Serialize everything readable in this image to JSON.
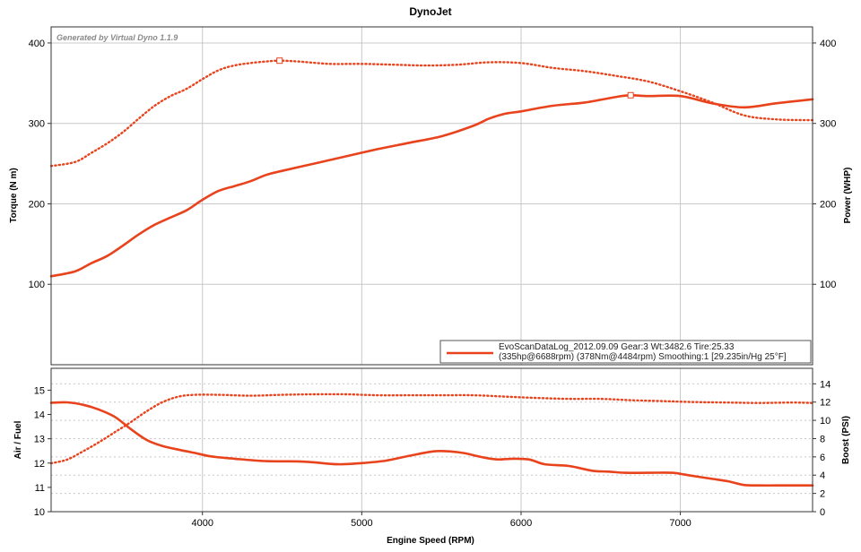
{
  "chart_data": {
    "type": "line",
    "title": "DynoJet",
    "watermark": "Generated by Virtual Dyno 1.1.9",
    "xlabel": "Engine Speed (RPM)",
    "xlim": [
      3050,
      7830
    ],
    "xticks": [
      4000,
      5000,
      6000,
      7000
    ],
    "colors": {
      "series": "#e8431c",
      "grid": "#c8c8c8",
      "frame": "#333333"
    },
    "legend": {
      "placement": "bottom-right",
      "line1": "EvoScanDataLog_2012.09.09 Gear:3 Wt:3482.6 Tire:25.33",
      "line2": "(335hp@6688rpm) (378Nm@4484rpm) Smoothing:1 [29.235in/Hg 25°F]"
    },
    "top": {
      "left_axis": {
        "label": "Torque (N m)",
        "lim": [
          0,
          420
        ],
        "ticks": [
          100,
          200,
          300,
          400
        ]
      },
      "right_axis": {
        "label": "Power (WHP)",
        "lim": [
          0,
          420
        ],
        "ticks": [
          100,
          200,
          300,
          400
        ]
      },
      "series": [
        {
          "name": "Torque",
          "axis": "left",
          "style": "dotted",
          "x": [
            3050,
            3200,
            3300,
            3400,
            3500,
            3600,
            3700,
            3800,
            3900,
            4000,
            4100,
            4200,
            4300,
            4400,
            4484,
            4600,
            4800,
            5000,
            5200,
            5400,
            5600,
            5800,
            6000,
            6200,
            6400,
            6600,
            6800,
            7000,
            7200,
            7400,
            7600,
            7830
          ],
          "y": [
            247,
            252,
            263,
            275,
            289,
            306,
            322,
            334,
            343,
            355,
            366,
            372,
            375,
            377,
            378,
            377,
            374,
            374,
            373,
            372,
            373,
            376,
            375,
            369,
            365,
            359,
            352,
            340,
            326,
            310,
            305,
            304
          ],
          "marker": {
            "x": 4484,
            "y": 378
          }
        },
        {
          "name": "Power",
          "axis": "right",
          "style": "solid",
          "x": [
            3050,
            3200,
            3300,
            3400,
            3500,
            3600,
            3700,
            3800,
            3900,
            4000,
            4100,
            4200,
            4300,
            4400,
            4500,
            4700,
            4900,
            5100,
            5300,
            5500,
            5700,
            5800,
            5900,
            6000,
            6200,
            6400,
            6600,
            6688,
            6800,
            7000,
            7200,
            7400,
            7600,
            7830
          ],
          "y": [
            110,
            116,
            126,
            135,
            148,
            162,
            174,
            183,
            192,
            205,
            216,
            222,
            228,
            236,
            241,
            250,
            259,
            268,
            276,
            284,
            297,
            306,
            312,
            315,
            322,
            326,
            333,
            335,
            334,
            334,
            325,
            320,
            325,
            330
          ],
          "marker": {
            "x": 6688,
            "y": 335
          }
        }
      ]
    },
    "bottom": {
      "left_axis": {
        "label": "Air / Fuel",
        "lim": [
          10,
          15.9
        ],
        "ticks": [
          10,
          11,
          12,
          13,
          14,
          15
        ]
      },
      "right_axis": {
        "label": "Boost (PSI)",
        "lim": [
          0,
          15.7
        ],
        "ticks": [
          0,
          2,
          4,
          6,
          8,
          10,
          12,
          14
        ]
      },
      "series": [
        {
          "name": "Air / Fuel",
          "axis": "left",
          "style": "solid",
          "x": [
            3050,
            3150,
            3250,
            3350,
            3450,
            3550,
            3650,
            3750,
            3850,
            3950,
            4050,
            4200,
            4400,
            4600,
            4700,
            4850,
            5000,
            5150,
            5300,
            5450,
            5550,
            5650,
            5750,
            5850,
            5950,
            6050,
            6150,
            6300,
            6450,
            6550,
            6650,
            6800,
            6950,
            7050,
            7200,
            7300,
            7400,
            7500,
            7650,
            7830
          ],
          "y": [
            14.48,
            14.5,
            14.4,
            14.2,
            13.9,
            13.4,
            12.95,
            12.7,
            12.55,
            12.42,
            12.28,
            12.18,
            12.08,
            12.07,
            12.03,
            11.95,
            12.0,
            12.1,
            12.3,
            12.48,
            12.48,
            12.4,
            12.25,
            12.15,
            12.18,
            12.15,
            11.95,
            11.88,
            11.68,
            11.65,
            11.6,
            11.6,
            11.6,
            11.5,
            11.35,
            11.25,
            11.1,
            11.08,
            11.08,
            11.08
          ]
        },
        {
          "name": "Boost",
          "axis": "right",
          "style": "dotted",
          "x": [
            3050,
            3150,
            3250,
            3350,
            3450,
            3550,
            3650,
            3750,
            3850,
            3950,
            4100,
            4300,
            4500,
            4700,
            4900,
            5100,
            5300,
            5500,
            5700,
            5900,
            6100,
            6300,
            6500,
            6700,
            6900,
            7100,
            7300,
            7500,
            7700,
            7830
          ],
          "y": [
            5.3,
            5.7,
            6.6,
            7.6,
            8.7,
            9.8,
            11.0,
            12.0,
            12.6,
            12.8,
            12.8,
            12.7,
            12.8,
            12.85,
            12.85,
            12.75,
            12.75,
            12.75,
            12.75,
            12.6,
            12.45,
            12.35,
            12.35,
            12.2,
            12.1,
            12.0,
            11.95,
            11.9,
            11.95,
            11.9
          ]
        }
      ]
    }
  }
}
